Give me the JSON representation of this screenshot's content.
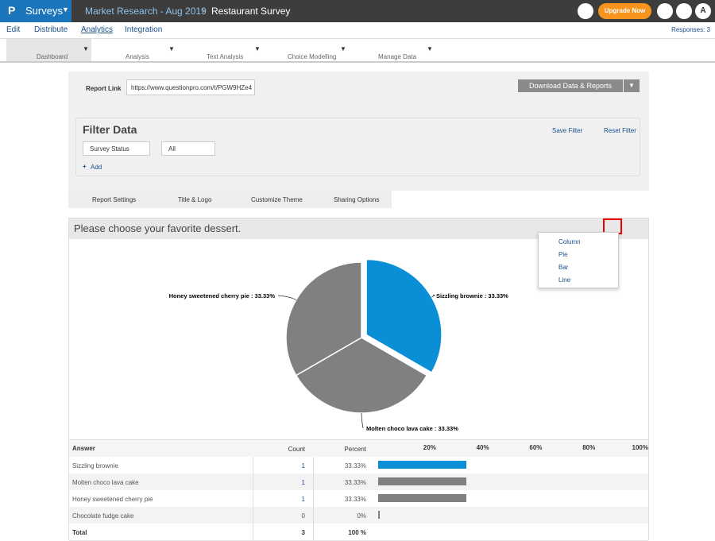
{
  "topbar": {
    "product": "Surveys",
    "breadcrumb": [
      "Market Research - Aug 2019",
      "Restaurant Survey"
    ],
    "upgrade": "Upgrade Now",
    "avatar": "A"
  },
  "menu": {
    "items": [
      "Edit",
      "Distribute",
      "Analytics",
      "Integration"
    ],
    "responses": "Responses: 3"
  },
  "toolbar": [
    "Dashboard",
    "Analysis",
    "Text Analysis",
    "Choice Modelling",
    "Manage Data"
  ],
  "report": {
    "link_label": "Report Link",
    "link": "https://www.questionpro.com/t/PGW9HZe4",
    "download": "Download Data & Reports"
  },
  "filter": {
    "title": "Filter Data",
    "save": "Save Filter",
    "reset": "Reset Filter",
    "status": "Survey Status",
    "all": "All",
    "add": "Add"
  },
  "tabs": [
    "Report Settings",
    "Title & Logo",
    "Customize Theme",
    "Sharing Options"
  ],
  "question": {
    "title": "Please choose your favorite dessert.",
    "chart_menu": [
      "Column",
      "Pie",
      "Bar",
      "Line"
    ]
  },
  "chart_data": {
    "type": "pie",
    "categories": [
      "Sizzling brownie",
      "Molten choco lava cake",
      "Honey sweetened cherry pie"
    ],
    "values": [
      33.33,
      33.33,
      33.33
    ],
    "value_labels": [
      "Sizzling brownie : 33.33%",
      "Molten choco lava cake : 33.33%",
      "Honey sweetened cherry pie : 33.33%"
    ],
    "colors": [
      "#0a8fd6",
      "#808080",
      "#808080"
    ]
  },
  "table": {
    "headers": [
      "Answer",
      "Count",
      "Percent"
    ],
    "rows": [
      {
        "answer": "Sizzling brownie",
        "count": 1,
        "percent": {
          "value": 33.33,
          "label": "33.33%"
        }
      },
      {
        "answer": "Molten choco lava cake",
        "count": 1,
        "percent": {
          "value": 33.33,
          "label": "33.33%"
        }
      },
      {
        "answer": "Honey sweetened cherry pie",
        "count": 1,
        "percent": {
          "value": 33.33,
          "label": "33.33%"
        }
      },
      {
        "answer": "Chocolate fudge cake",
        "count": 0,
        "percent": {
          "value": 0,
          "label": "0%"
        }
      }
    ],
    "total": {
      "label": "Total",
      "count": 3,
      "percent": "100 %"
    },
    "bar_colors": [
      "#0a8fd6",
      "#808080",
      "#808080",
      "#808080"
    ],
    "xlim": [
      0,
      100
    ],
    "xticks": [
      {
        "value": 20,
        "label": "20%"
      },
      {
        "value": 40,
        "label": "40%"
      },
      {
        "value": 60,
        "label": "60%"
      },
      {
        "value": 80,
        "label": "80%"
      },
      {
        "value": 100,
        "label": "100%"
      }
    ]
  }
}
